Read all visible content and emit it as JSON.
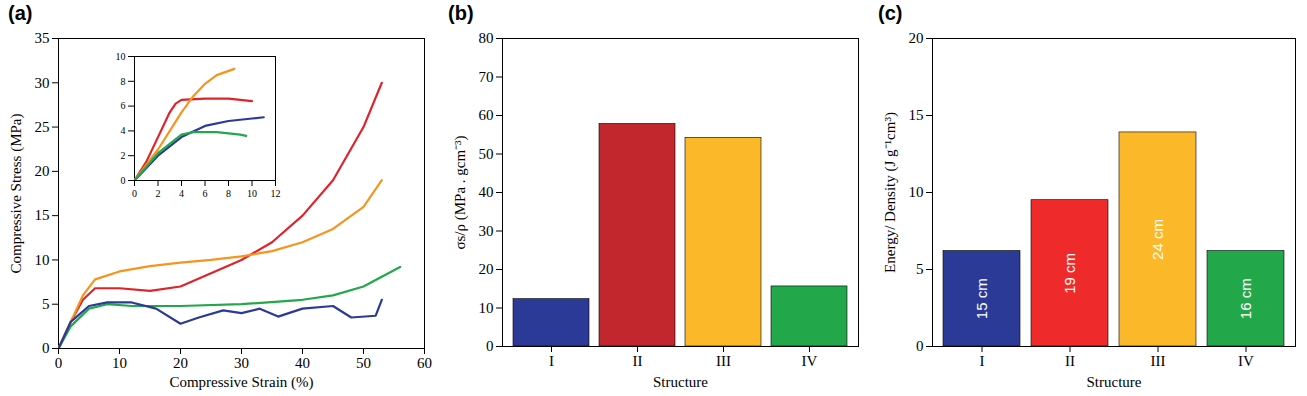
{
  "chart_data": [
    {
      "type": "line",
      "panel_label": "(a)",
      "x_label": "Compressive Strain (%)",
      "y_label": "Compressive Stress (MPa)",
      "xlim": [
        0,
        60
      ],
      "xticks": [
        0,
        10,
        20,
        30,
        40,
        50,
        60
      ],
      "ylim": [
        0,
        35
      ],
      "yticks": [
        0,
        5,
        10,
        15,
        20,
        25,
        30,
        35
      ],
      "series": [
        {
          "color": "#e0232a",
          "x": [
            0,
            2,
            4,
            6,
            10,
            15,
            20,
            25,
            30,
            35,
            40,
            45,
            50,
            53
          ],
          "values": [
            0,
            3,
            5.5,
            6.8,
            6.8,
            6.5,
            7,
            8.5,
            10,
            12,
            15,
            19,
            25,
            30
          ]
        },
        {
          "color": "#f7941d",
          "x": [
            0,
            2,
            4,
            6,
            10,
            15,
            20,
            25,
            30,
            35,
            40,
            45,
            50,
            53
          ],
          "values": [
            0,
            3,
            6,
            7.8,
            8.7,
            9.3,
            9.7,
            10,
            10.4,
            11,
            12,
            13.5,
            16,
            19
          ]
        },
        {
          "color": "#22a84a",
          "x": [
            0,
            2,
            5,
            8,
            12,
            20,
            30,
            40,
            45,
            50,
            56
          ],
          "values": [
            0,
            2.5,
            4.5,
            5,
            4.8,
            4.8,
            5,
            5.5,
            6,
            7,
            9.2
          ]
        },
        {
          "color": "#2b3a97",
          "x": [
            0,
            2,
            5,
            8,
            12,
            16,
            20,
            23,
            27,
            30,
            33,
            36,
            40,
            45,
            48,
            52,
            53
          ],
          "values": [
            0,
            3,
            4.8,
            5.2,
            5.2,
            4.5,
            2.8,
            3.5,
            4.3,
            4,
            4.5,
            3.6,
            4.5,
            4.8,
            3.5,
            3.7,
            5.5
          ]
        }
      ]
    },
    {
      "type": "line",
      "xlim": [
        0,
        12
      ],
      "xticks": [
        0,
        2,
        4,
        6,
        8,
        10,
        12
      ],
      "ylim": [
        0,
        10
      ],
      "yticks": [
        0,
        2,
        4,
        6,
        8,
        10
      ],
      "series": [
        {
          "color": "#e0232a",
          "x": [
            0,
            1,
            2,
            3,
            3.5,
            4,
            6,
            8,
            10
          ],
          "values": [
            0,
            1.5,
            3.5,
            5.5,
            6.2,
            6.5,
            6.6,
            6.6,
            6.4
          ]
        },
        {
          "color": "#f7941d",
          "x": [
            0,
            2,
            4,
            5,
            6,
            7,
            8.5
          ],
          "values": [
            0,
            2.5,
            5.5,
            6.8,
            7.8,
            8.5,
            9
          ]
        },
        {
          "color": "#2b3a97",
          "x": [
            0,
            2,
            4,
            6,
            8,
            10,
            11
          ],
          "values": [
            0,
            2,
            3.5,
            4.4,
            4.8,
            5,
            5.1
          ]
        },
        {
          "color": "#22a84a",
          "x": [
            0,
            2,
            4,
            5,
            7,
            9,
            9.5
          ],
          "values": [
            0,
            2.2,
            3.7,
            3.9,
            3.9,
            3.7,
            3.6
          ]
        }
      ]
    },
    {
      "type": "bar",
      "panel_label": "(b)",
      "x_label": "Structure",
      "y_label": "σs/ρ (MPa . gcm⁻³)",
      "categories": [
        "I",
        "II",
        "III",
        "IV"
      ],
      "values": [
        12.3,
        57.8,
        54.2,
        15.6
      ],
      "colors": [
        "#2b3a97",
        "#c1272d",
        "#fbb829",
        "#22a84a"
      ],
      "ylim": [
        0,
        80
      ],
      "yticks": [
        0,
        10,
        20,
        30,
        40,
        50,
        60,
        70,
        80
      ]
    },
    {
      "type": "bar",
      "panel_label": "(c)",
      "x_label": "Structure",
      "y_label": "Energy/ Density (J g⁻¹cm³)",
      "categories": [
        "I",
        "II",
        "III",
        "IV"
      ],
      "values": [
        6.2,
        9.5,
        13.9,
        6.2
      ],
      "annotations": [
        "15 cm",
        "19 cm",
        "24 cm",
        "16 cm"
      ],
      "colors": [
        "#2b3a97",
        "#ee2a2a",
        "#fbb829",
        "#22a84a"
      ],
      "ylim": [
        0,
        20
      ],
      "yticks": [
        0,
        5,
        10,
        15,
        20
      ]
    }
  ]
}
